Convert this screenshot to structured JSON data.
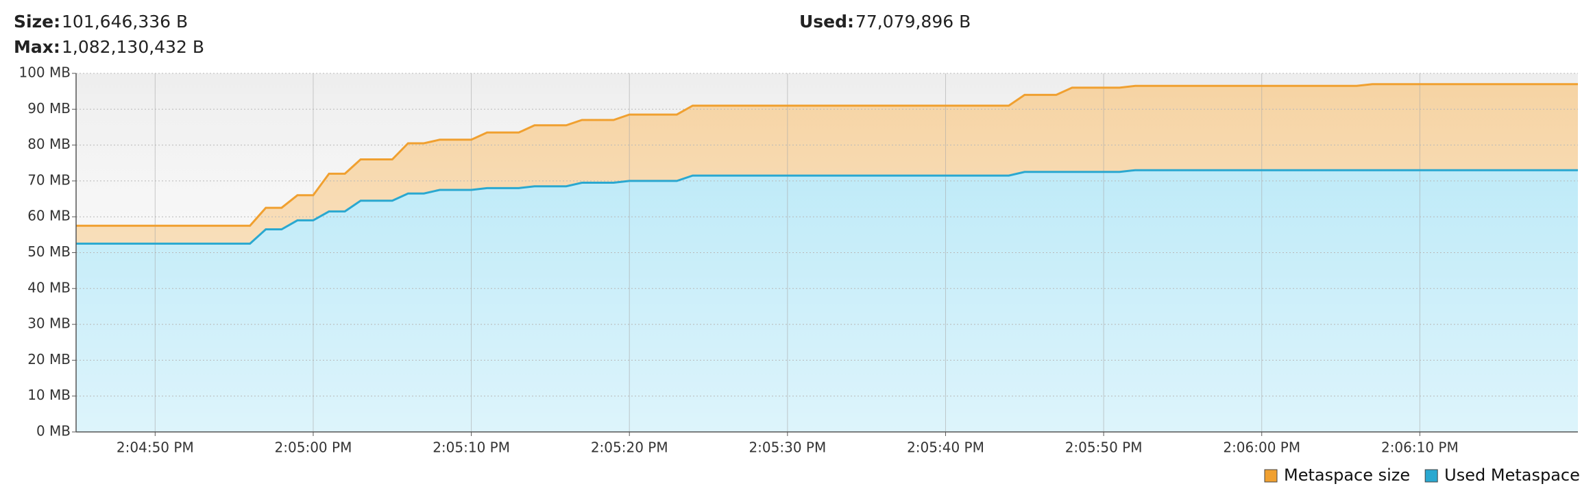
{
  "header": {
    "size_label": "Size:",
    "size": "101,646,336 B",
    "used_label": "Used:",
    "used": "77,079,896 B",
    "max_label": "Max:",
    "max": "1,082,130,432 B"
  },
  "chart_data": {
    "type": "area",
    "x": [
      "2:04:45 PM",
      "2:04:56 PM",
      "2:04:57 PM",
      "2:04:58 PM",
      "2:04:59 PM",
      "2:05:00 PM",
      "2:05:01 PM",
      "2:05:02 PM",
      "2:05:03 PM",
      "2:05:05 PM",
      "2:05:06 PM",
      "2:05:07 PM",
      "2:05:08 PM",
      "2:05:10 PM",
      "2:05:11 PM",
      "2:05:13 PM",
      "2:05:14 PM",
      "2:05:16 PM",
      "2:05:17 PM",
      "2:05:19 PM",
      "2:05:20 PM",
      "2:05:23 PM",
      "2:05:24 PM",
      "2:05:44 PM",
      "2:05:45 PM",
      "2:05:47 PM",
      "2:05:48 PM",
      "2:05:51 PM",
      "2:05:52 PM",
      "2:06:06 PM",
      "2:06:07 PM",
      "2:06:20 PM"
    ],
    "series": [
      {
        "name": "Metaspace size",
        "color": "#f0a030",
        "fill": "#f6d3a2",
        "values": [
          57.5,
          57.5,
          62.5,
          62.5,
          66,
          66,
          72,
          72,
          76,
          76,
          80.5,
          80.5,
          81.5,
          81.5,
          83.5,
          83.5,
          85.5,
          85.5,
          87,
          87,
          88.5,
          88.5,
          91,
          91,
          94,
          94,
          96,
          96,
          96.5,
          96.5,
          97,
          97
        ]
      },
      {
        "name": "Used Metaspace",
        "color": "#2aa8d0",
        "fill": "#b4e7f7",
        "values": [
          52.5,
          52.5,
          56.5,
          56.5,
          59,
          59,
          61.5,
          61.5,
          64.5,
          64.5,
          66.5,
          66.5,
          67.5,
          67.5,
          68,
          68,
          68.5,
          68.5,
          69.5,
          69.5,
          70,
          70,
          71.5,
          71.5,
          72.5,
          72.5,
          72.5,
          72.5,
          73,
          73,
          73,
          73
        ]
      }
    ],
    "xlim": [
      "2:04:45 PM",
      "2:06:20 PM"
    ],
    "xticks": [
      "2:04:50 PM",
      "2:05:00 PM",
      "2:05:10 PM",
      "2:05:20 PM",
      "2:05:30 PM",
      "2:05:40 PM",
      "2:05:50 PM",
      "2:06:00 PM",
      "2:06:10 PM"
    ],
    "ylim": [
      0,
      100
    ],
    "yticks": [
      {
        "value": 0,
        "label": "0 MB"
      },
      {
        "value": 10,
        "label": "10 MB"
      },
      {
        "value": 20,
        "label": "20 MB"
      },
      {
        "value": 30,
        "label": "30 MB"
      },
      {
        "value": 40,
        "label": "40 MB"
      },
      {
        "value": 50,
        "label": "50 MB"
      },
      {
        "value": 60,
        "label": "60 MB"
      },
      {
        "value": 70,
        "label": "70 MB"
      },
      {
        "value": 80,
        "label": "80 MB"
      },
      {
        "value": 90,
        "label": "90 MB"
      },
      {
        "value": 100,
        "label": "100 MB"
      }
    ],
    "grid": true,
    "legend": "bottom-right"
  }
}
